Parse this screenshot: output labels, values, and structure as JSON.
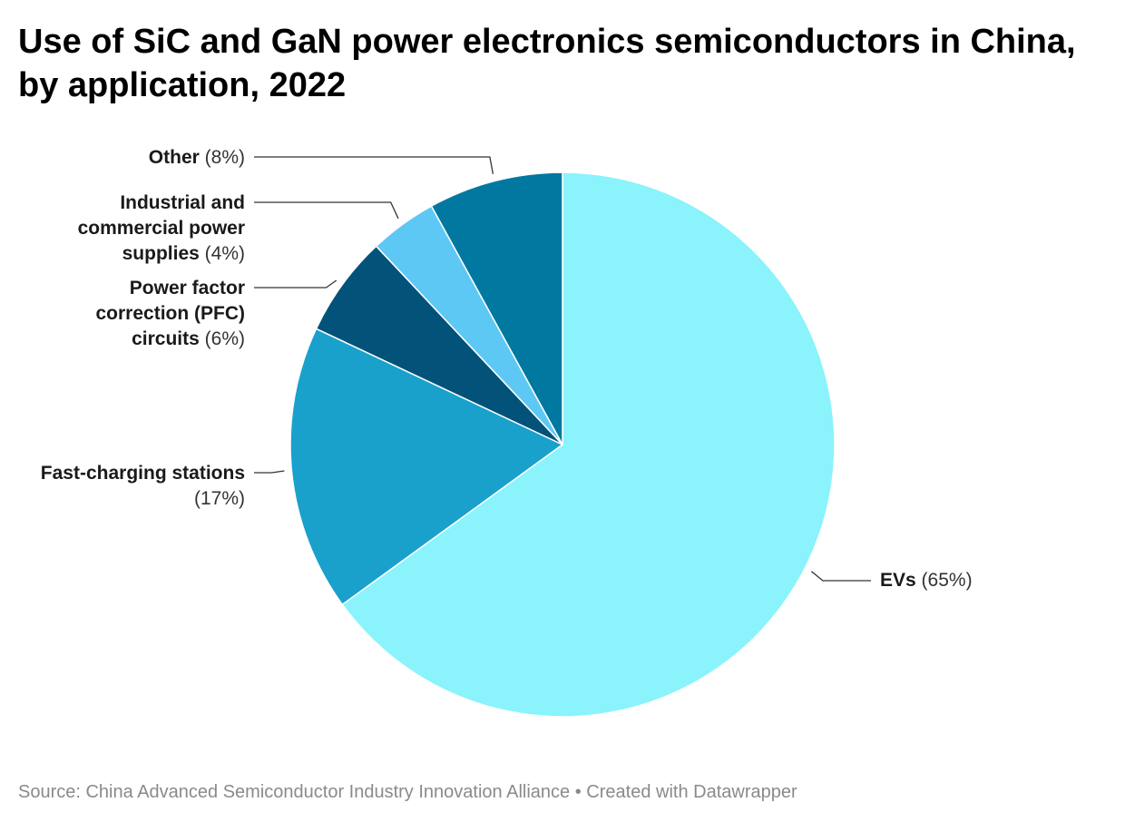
{
  "title": "Use of SiC and GaN power electronics semiconductors in China, by application, 2022",
  "footer": {
    "source": "Source: China Advanced Semiconductor Industry Innovation Alliance",
    "separator": "•",
    "credit": "Created with Datawrapper"
  },
  "chart_data": {
    "type": "pie",
    "title": "Use of SiC and GaN power electronics semiconductors in China, by application, 2022",
    "slices": [
      {
        "label": "EVs",
        "value": 65,
        "value_label": "(65%)",
        "color": "#8af3fc"
      },
      {
        "label": "Fast-charging stations",
        "value": 17,
        "value_label": "(17%)",
        "color": "#19a1cc"
      },
      {
        "label": "Power factor correction (PFC) circuits",
        "value": 6,
        "value_label": "(6%)",
        "color": "#03527a"
      },
      {
        "label": "Industrial and commercial power supplies",
        "value": 4,
        "value_label": "(4%)",
        "color": "#5ec8f5"
      },
      {
        "label": "Other",
        "value": 8,
        "value_label": "(8%)",
        "color": "#00789f"
      }
    ]
  }
}
